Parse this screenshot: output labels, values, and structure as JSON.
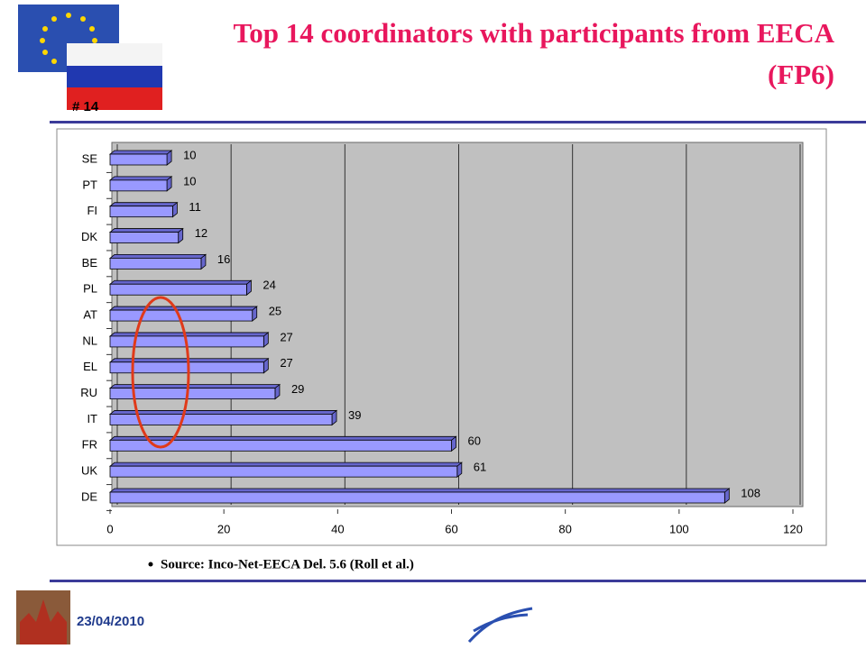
{
  "slide": {
    "number": "# 14",
    "date": "23/04/2010",
    "source": "Source: Inco-Net-EECA Del. 5.6 (Roll et al.)"
  },
  "chart_data": {
    "type": "hbar",
    "title": "Top 14 coordinators with participants from EECA (FP6)",
    "categories": [
      "SE",
      "PT",
      "FI",
      "DK",
      "BE",
      "PL",
      "AT",
      "NL",
      "EL",
      "RU",
      "IT",
      "FR",
      "UK",
      "DE"
    ],
    "values": [
      10,
      10,
      11,
      12,
      16,
      24,
      25,
      27,
      27,
      29,
      39,
      60,
      61,
      108
    ],
    "color": "#9999ff",
    "xlim": [
      0,
      120
    ],
    "xticks": [
      0,
      20,
      40,
      60,
      80,
      100,
      120
    ],
    "grid": true
  }
}
